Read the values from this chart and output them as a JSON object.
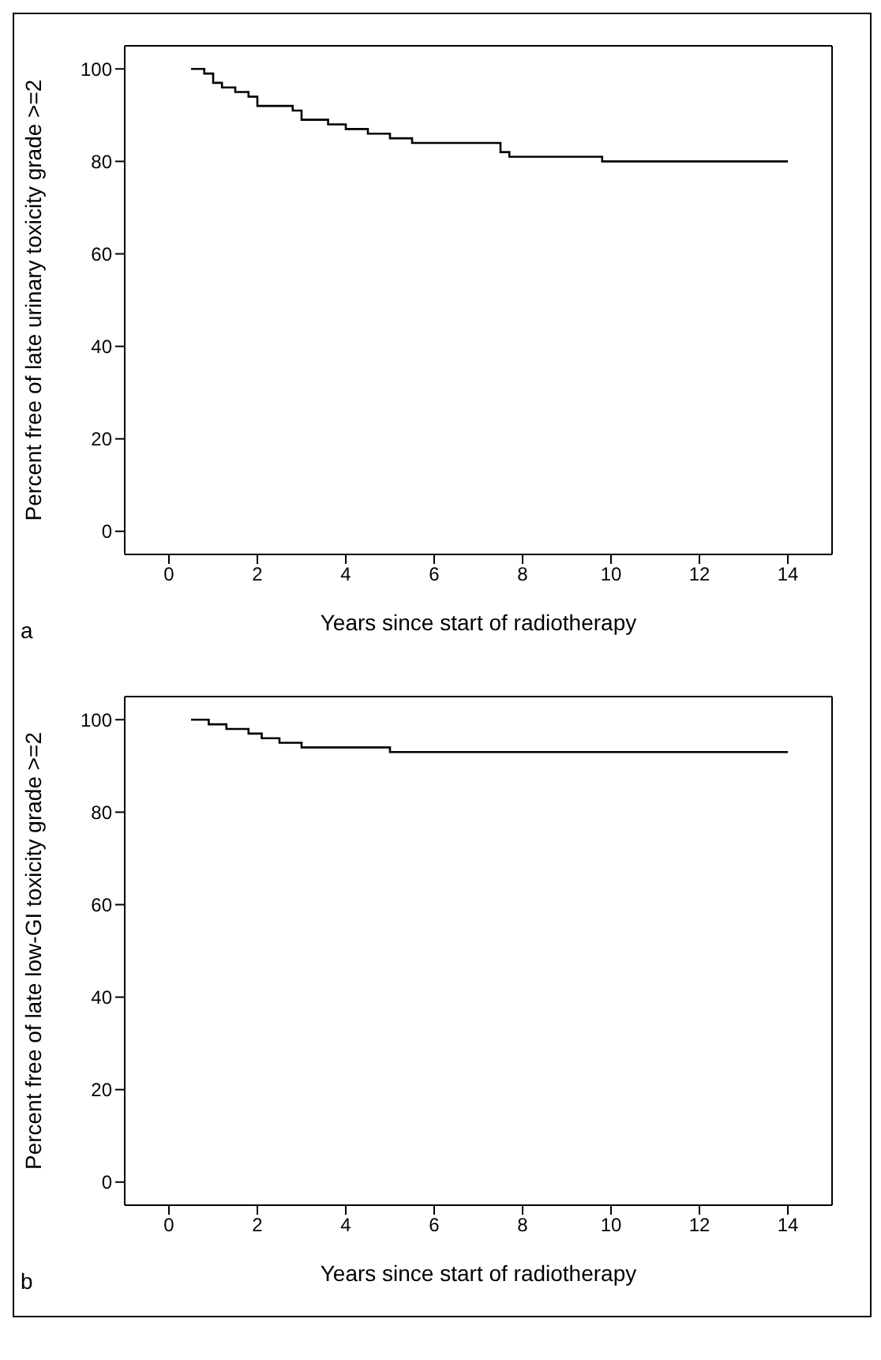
{
  "chart_data": [
    {
      "type": "step",
      "xlabel": "Years since start of radiotherapy",
      "ylabel": "Percent free of late urinary toxicity grade >=2",
      "annotations": [
        "a"
      ],
      "xlim": [
        -1,
        15
      ],
      "ylim": [
        -5,
        105
      ],
      "xticks": [
        0,
        2,
        4,
        6,
        8,
        10,
        12,
        14
      ],
      "yticks": [
        0,
        20,
        40,
        60,
        80,
        100
      ],
      "series": [
        {
          "color": "#000000",
          "x": [
            0.5,
            0.8,
            1.0,
            1.2,
            1.5,
            1.8,
            2.0,
            2.8,
            3.0,
            3.6,
            4.0,
            4.5,
            5.0,
            5.5,
            7.5,
            7.7,
            9.8,
            14
          ],
          "values": [
            100,
            99,
            97,
            96,
            95,
            94,
            92,
            91,
            89,
            88,
            87,
            86,
            85,
            84,
            82,
            81,
            80,
            80
          ]
        }
      ]
    },
    {
      "type": "step",
      "xlabel": "Years since start of radiotherapy",
      "ylabel": "Percent free of late low-GI toxicity grade >=2",
      "annotations": [
        "b"
      ],
      "xlim": [
        -1,
        15
      ],
      "ylim": [
        -5,
        105
      ],
      "xticks": [
        0,
        2,
        4,
        6,
        8,
        10,
        12,
        14
      ],
      "yticks": [
        0,
        20,
        40,
        60,
        80,
        100
      ],
      "series": [
        {
          "color": "#000000",
          "x": [
            0.5,
            0.9,
            1.3,
            1.8,
            2.1,
            2.5,
            3.0,
            5.0,
            14
          ],
          "values": [
            100,
            99,
            98,
            97,
            96,
            95,
            94,
            93,
            93
          ]
        }
      ]
    }
  ]
}
